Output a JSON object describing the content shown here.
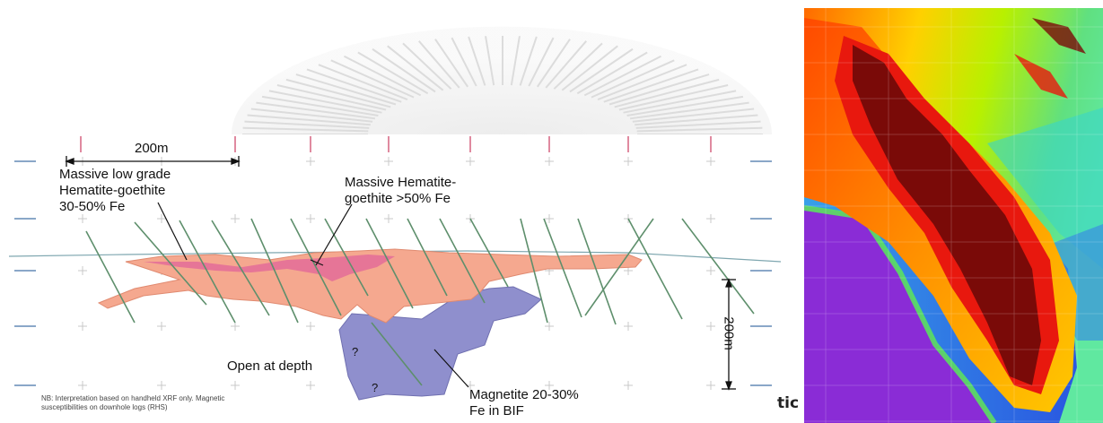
{
  "section": {
    "scale_horizontal": "200m",
    "scale_vertical": "200m",
    "labels": {
      "low_grade_line1": "Massive low grade",
      "low_grade_line2": "Hematite-goethite",
      "low_grade_line3": "30-50% Fe",
      "hematite_line1": "Massive Hematite-",
      "hematite_line2": "goethite >50% Fe",
      "open_depth": "Open at depth",
      "magnetite_line1": "Magnetite 20-30%",
      "magnetite_line2": "Fe in BIF",
      "question1": "?",
      "question2": "?"
    },
    "note_line1": "NB: Interpretation based on handheld XRF only. Magnetic",
    "note_line2": "susceptibilities on downhole logs (RHS)"
  },
  "caption_fragment": "tic",
  "colors": {
    "low_grade": "#f5a88f",
    "high_grade": "#e0609a",
    "magnetite": "#8f8fcd",
    "drill": "#5e8f6c",
    "map_purple": "#8a2cd6",
    "map_red": "#e8180e",
    "map_darkred": "#7a0a08",
    "map_green": "#4ee05a"
  }
}
